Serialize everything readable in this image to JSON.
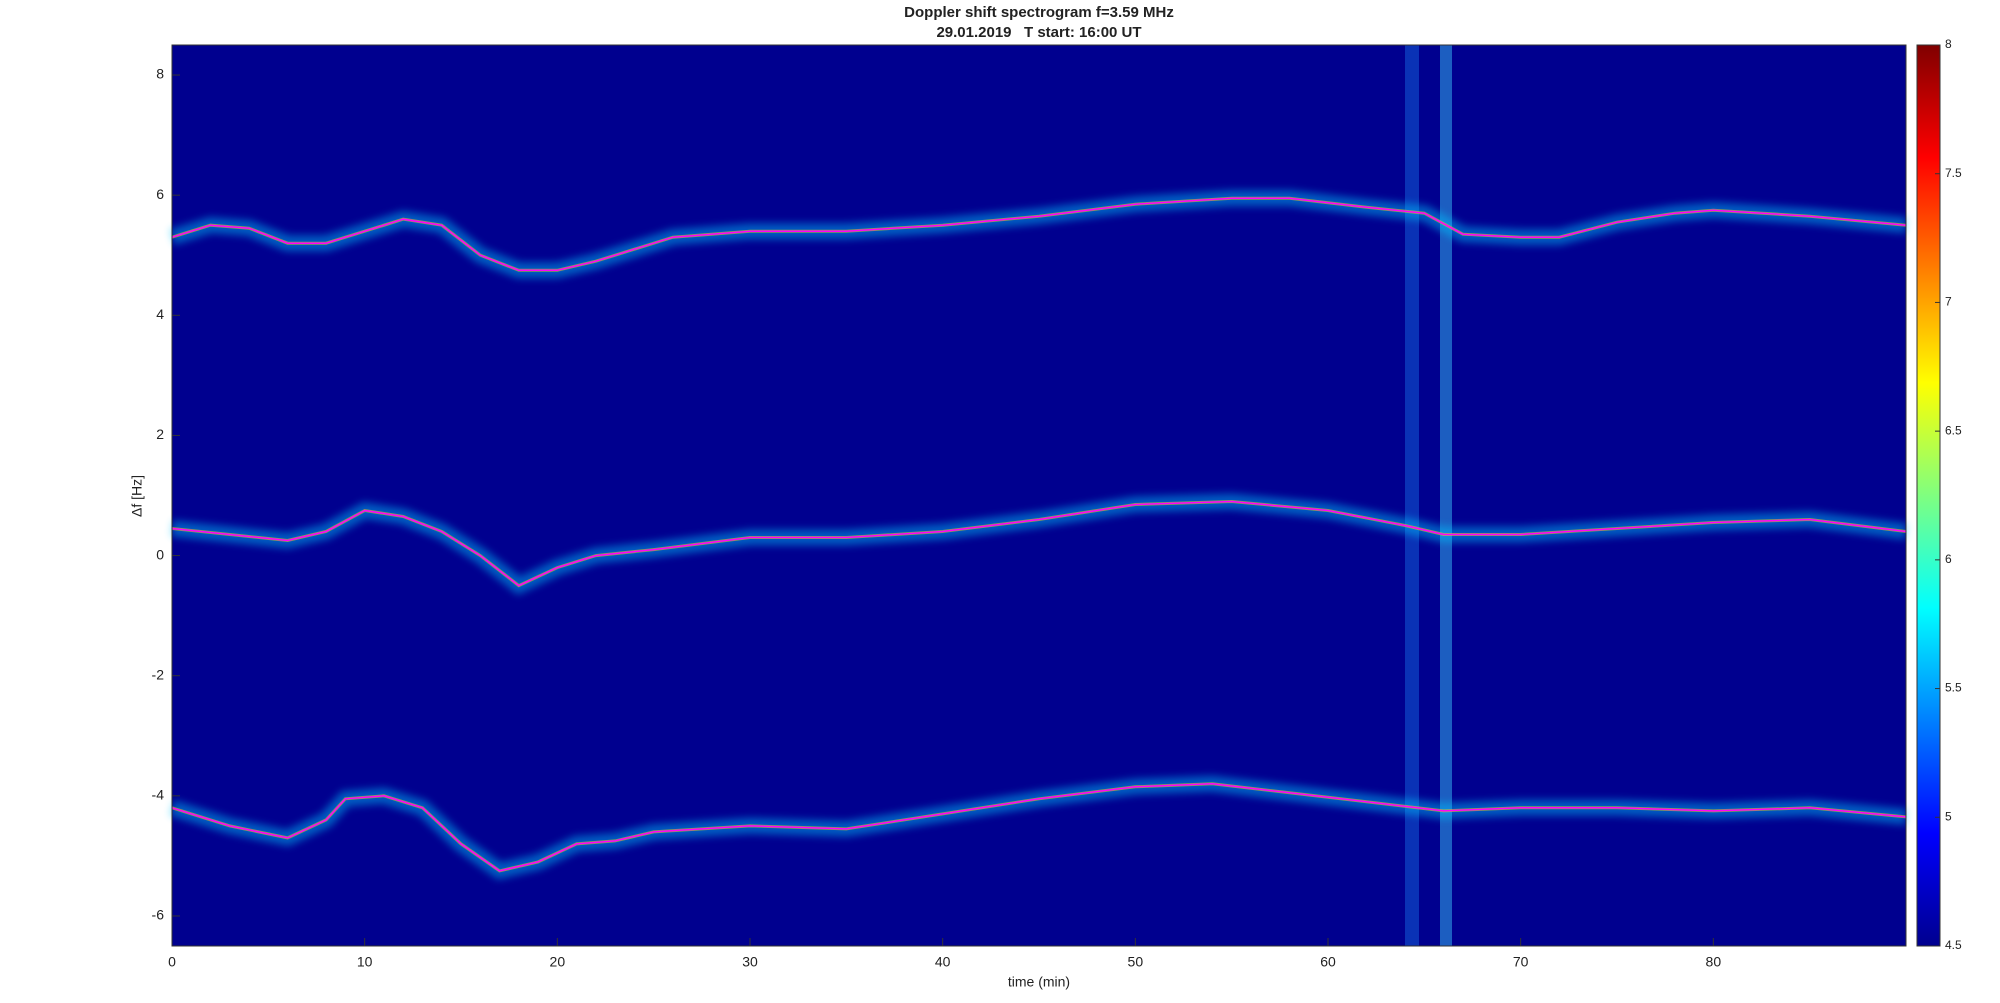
{
  "chart_data": {
    "type": "spectrogram",
    "title": "Doppler shift spectrogram f=3.59 MHz",
    "subtitle": "29.01.2019   T start: 16:00 UT",
    "x_label": "time (min)",
    "y_label": "Δf [Hz]",
    "xlim": [
      0,
      90
    ],
    "ylim": [
      -6.5,
      8.5
    ],
    "xticks": [
      0,
      10,
      20,
      30,
      40,
      50,
      60,
      70,
      80
    ],
    "yticks": [
      -6,
      -4,
      -2,
      0,
      2,
      4,
      6,
      8
    ],
    "line_color": "#ff00ff",
    "background_color": "#00008f",
    "series": [
      {
        "x": [
          0,
          2,
          4,
          6,
          8,
          10,
          12,
          14,
          16,
          18,
          20,
          22,
          24,
          26,
          28,
          30,
          35,
          40,
          45,
          50,
          55,
          58,
          62,
          65,
          67,
          70,
          72,
          75,
          78,
          80,
          85,
          90
        ],
        "values": [
          5.3,
          5.5,
          5.45,
          5.2,
          5.2,
          5.4,
          5.6,
          5.5,
          5.0,
          4.75,
          4.75,
          4.9,
          5.1,
          5.3,
          5.35,
          5.4,
          5.4,
          5.5,
          5.65,
          5.85,
          5.95,
          5.95,
          5.8,
          5.7,
          5.35,
          5.3,
          5.3,
          5.55,
          5.7,
          5.75,
          5.65,
          5.5
        ]
      },
      {
        "x": [
          0,
          3,
          6,
          8,
          10,
          12,
          14,
          16,
          18,
          20,
          22,
          25,
          30,
          35,
          40,
          45,
          50,
          55,
          60,
          64,
          66,
          70,
          75,
          80,
          85,
          90
        ],
        "values": [
          0.45,
          0.35,
          0.25,
          0.4,
          0.75,
          0.65,
          0.4,
          0.0,
          -0.5,
          -0.2,
          0.0,
          0.1,
          0.3,
          0.3,
          0.4,
          0.6,
          0.85,
          0.9,
          0.75,
          0.5,
          0.35,
          0.35,
          0.45,
          0.55,
          0.6,
          0.4
        ]
      },
      {
        "x": [
          0,
          3,
          6,
          8,
          9,
          11,
          13,
          15,
          17,
          19,
          21,
          23,
          25,
          30,
          35,
          40,
          45,
          50,
          54,
          58,
          62,
          66,
          70,
          75,
          80,
          85,
          90
        ],
        "values": [
          -4.2,
          -4.5,
          -4.7,
          -4.4,
          -4.05,
          -4.0,
          -4.2,
          -4.8,
          -5.25,
          -5.1,
          -4.8,
          -4.75,
          -4.6,
          -4.5,
          -4.55,
          -4.3,
          -4.05,
          -3.85,
          -3.8,
          -3.95,
          -4.1,
          -4.25,
          -4.2,
          -4.2,
          -4.25,
          -4.2,
          -4.35
        ]
      }
    ],
    "colorbar": {
      "colormap": "jet",
      "lim": [
        4.5,
        8
      ],
      "ticks": [
        4.5,
        5,
        5.5,
        6,
        6.5,
        7,
        7.5,
        8
      ]
    }
  }
}
